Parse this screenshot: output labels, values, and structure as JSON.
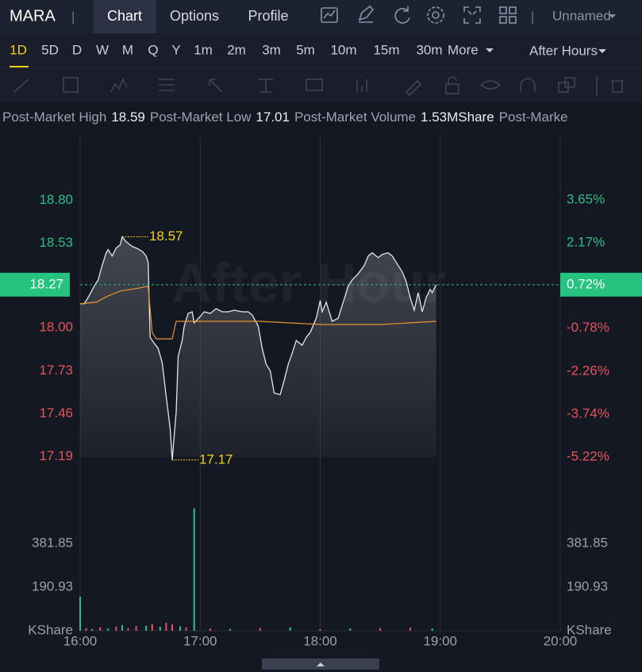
{
  "header": {
    "symbol": "MARA",
    "separators": [
      "|",
      "|"
    ],
    "tabs": [
      "Chart",
      "Options",
      "Profile"
    ],
    "layout": "Unnamed"
  },
  "periods": {
    "items": [
      "1D",
      "5D",
      "D",
      "W",
      "M",
      "Q",
      "Y",
      "1m",
      "2m",
      "3m",
      "5m",
      "10m",
      "15m",
      "30m"
    ],
    "more": "More",
    "session": "After Hours"
  },
  "stats": {
    "items": [
      {
        "label": "Post-Market High",
        "value": 18.59
      },
      {
        "label": "Post-Market Low",
        "value": 17.01
      },
      {
        "label": "Post-Market Volume",
        "value": "1.53M",
        "unit": "Share"
      }
    ],
    "overflow": "Post-Marke"
  },
  "chart_data": {
    "type": "line",
    "watermark": "After Hour",
    "xlim": [
      "16:00",
      "20:00"
    ],
    "xticks": [
      "16:00",
      "17:00",
      "18:00",
      "19:00",
      "20:00"
    ],
    "ylim": [
      16.92,
      19.21
    ],
    "yticks": [
      {
        "value": 18.8,
        "label": "18.80"
      },
      {
        "value": 18.53,
        "label": "18.53"
      },
      {
        "value": 18,
        "label": "18.00"
      },
      {
        "value": 17.73,
        "label": "17.73"
      },
      {
        "value": 17.46,
        "label": "17.46"
      },
      {
        "value": 17.19,
        "label": "17.19"
      }
    ],
    "y2lim": [
      -6.7,
      5.89
    ],
    "y2ticks": [
      {
        "value": 3.65,
        "label": "3.65%"
      },
      {
        "value": 2.17,
        "label": "2.17%"
      },
      {
        "value": -0.78,
        "label": "-0.78%"
      },
      {
        "value": -2.26,
        "label": "-2.26%"
      },
      {
        "value": -3.74,
        "label": "-3.74%"
      },
      {
        "value": -5.22,
        "label": "-5.22%"
      }
    ],
    "colors": {
      "up": "#2dbd85",
      "down": "#e5545a",
      "annotation": "#f2d016"
    },
    "current": {
      "value": 18.27,
      "change": {
        "value": 0.72,
        "label": "0.72%"
      },
      "color": "#26c27f"
    },
    "series": [
      {
        "color": "#e6e6e6",
        "x": [
          "16:00",
          "16:02",
          "16:04",
          "16:07",
          "16:09",
          "16:11",
          "16:13",
          "16:14",
          "16:16",
          "16:18",
          "16:20",
          "16:21",
          "16:23",
          "16:26",
          "16:28",
          "16:31",
          "16:33",
          "16:34",
          "16:35",
          "16:36",
          "16:39",
          "16:41",
          "16:43",
          "16:45",
          "16:46",
          "16:48",
          "16:49",
          "16:51",
          "16:52",
          "16:54",
          "16:56",
          "16:57",
          "17:00",
          "17:02",
          "17:05",
          "17:08",
          "17:11",
          "17:14",
          "17:17",
          "17:21",
          "17:24",
          "17:26",
          "17:29",
          "17:31",
          "17:33",
          "17:35",
          "17:37",
          "17:40",
          "17:42",
          "17:44",
          "17:46",
          "17:48",
          "17:51",
          "17:53",
          "17:55",
          "17:58",
          "18:00",
          "18:01",
          "18:03",
          "18:06",
          "18:09",
          "18:11",
          "18:14",
          "18:16",
          "18:19",
          "18:22",
          "18:24",
          "18:26",
          "18:29",
          "18:31",
          "18:34",
          "18:36",
          "18:38",
          "18:41",
          "18:43",
          "18:45",
          "18:47",
          "18:49",
          "18:51",
          "18:53",
          "18:55",
          "18:56",
          "18:58"
        ],
        "values": [
          18.15,
          18.15,
          18.19,
          18.26,
          18.3,
          18.39,
          18.47,
          18.49,
          18.45,
          18.5,
          18.52,
          18.57,
          18.54,
          18.51,
          18.5,
          18.48,
          18.45,
          18.41,
          17.94,
          17.92,
          17.87,
          17.78,
          17.57,
          17.37,
          17.17,
          17.47,
          17.82,
          17.92,
          18.01,
          18.09,
          18.1,
          18.03,
          18.07,
          18.1,
          18.09,
          18.12,
          18.1,
          18.1,
          18.11,
          18.1,
          18.1,
          18.08,
          18.01,
          17.87,
          17.77,
          17.73,
          17.59,
          17.58,
          17.67,
          17.77,
          17.84,
          17.92,
          17.89,
          17.94,
          17.97,
          18.06,
          18.17,
          18.1,
          18.16,
          18.04,
          18.06,
          18.14,
          18.26,
          18.3,
          18.34,
          18.39,
          18.45,
          18.47,
          18.44,
          18.46,
          18.47,
          18.45,
          18.41,
          18.35,
          18.29,
          18.19,
          18.11,
          18.22,
          18.1,
          18.19,
          18.24,
          18.22,
          18.27
        ]
      },
      {
        "color": "#e8952c",
        "x": [
          "16:00",
          "16:08",
          "16:14",
          "16:20",
          "16:30",
          "16:34",
          "16:36",
          "16:38",
          "16:46",
          "16:48",
          "17:30",
          "18:00",
          "18:30",
          "18:58"
        ],
        "values": [
          18.15,
          18.16,
          18.2,
          18.23,
          18.25,
          18.26,
          17.97,
          17.93,
          17.93,
          18.04,
          18.04,
          18.02,
          18.02,
          18.04
        ]
      }
    ],
    "annotations": [
      {
        "x": "16:21",
        "value": 18.57
      },
      {
        "x": "16:46",
        "value": 17.17
      }
    ],
    "volume": {
      "unit": "KShare",
      "ylim": [
        0,
        572
      ],
      "yticks": [
        {
          "value": 381.85,
          "label": "381.85"
        },
        {
          "value": 190.93,
          "label": "190.93"
        }
      ],
      "x": [
        "16:00",
        "16:03",
        "16:06",
        "16:10",
        "16:14",
        "16:18",
        "16:21",
        "16:24",
        "16:28",
        "16:33",
        "16:36",
        "16:40",
        "16:43",
        "16:46",
        "16:50",
        "16:53",
        "16:57",
        "17:05",
        "17:15",
        "17:30",
        "17:45",
        "18:00",
        "18:15",
        "18:30",
        "18:45",
        "18:56"
      ],
      "values": [
        149,
        12,
        8,
        15,
        10,
        18,
        25,
        12,
        20,
        22,
        30,
        18,
        35,
        28,
        20,
        15,
        535,
        10,
        8,
        12,
        15,
        8,
        10,
        12,
        14,
        10
      ],
      "colors": [
        "#2dbd85",
        "#e5545a",
        "#2dbd85",
        "#e5545a",
        "#2dbd85",
        "#e5545a",
        "#2dbd85",
        "#e5545a",
        "#e5545a",
        "#2dbd85",
        "#e5545a",
        "#2dbd85",
        "#e5545a",
        "#e5545a",
        "#2dbd85",
        "#e5545a",
        "#2dbd85",
        "#e5545a",
        "#2dbd85",
        "#e5545a",
        "#2dbd85",
        "#e5545a",
        "#2dbd85",
        "#e5545a",
        "#e5545a",
        "#2dbd85"
      ]
    }
  }
}
